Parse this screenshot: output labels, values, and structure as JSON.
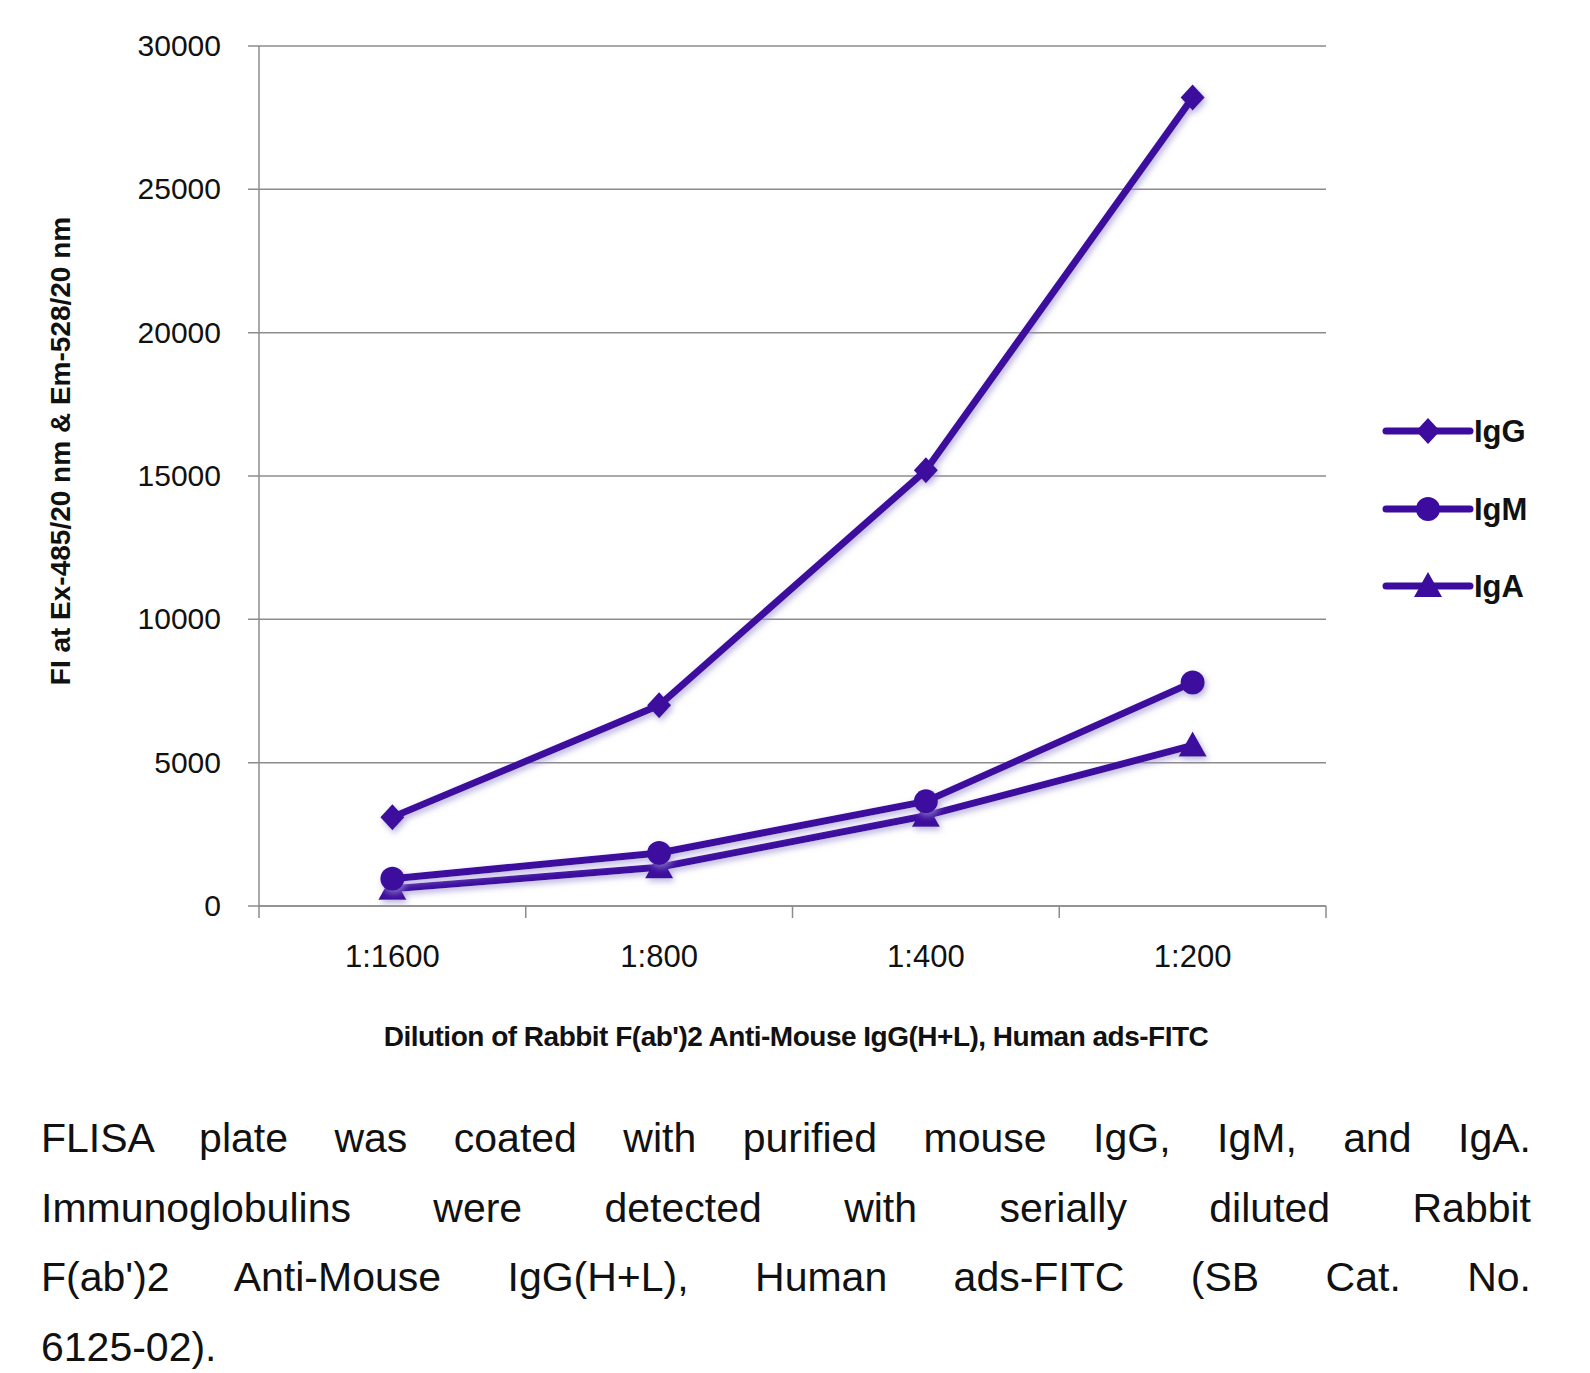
{
  "chart_data": {
    "type": "line",
    "x_label": "Dilution of Rabbit F(ab')2 Anti-Mouse IgG(H+L), Human ads-FITC",
    "y_label": "FI at Ex-485/20 nm & Em-528/20 nm",
    "categories": [
      "1:1600",
      "1:800",
      "1:400",
      "1:200"
    ],
    "series": [
      {
        "name": "IgG",
        "color": "#3c0c9e",
        "marker": "diamond",
        "values": [
          3100,
          7000,
          15200,
          28200
        ]
      },
      {
        "name": "IgM",
        "color": "#3c0c9e",
        "marker": "circle",
        "values": [
          950,
          1850,
          3650,
          7800
        ]
      },
      {
        "name": "IgA",
        "color": "#3c0c9e",
        "marker": "triangle",
        "values": [
          600,
          1350,
          3150,
          5600
        ]
      }
    ],
    "ylim": [
      0,
      30000
    ],
    "yticks": [
      0,
      5000,
      10000,
      15000,
      20000,
      25000,
      30000
    ],
    "grid": true,
    "legend": "right",
    "caption": [
      "FLISA plate was coated with purified mouse IgG, IgM, and IgA.",
      "Immunoglobulins were detected with serially diluted Rabbit",
      "F(ab')2 Anti-Mouse IgG(H+L), Human ads-FITC (SB Cat. No.",
      "6125-02)."
    ]
  }
}
